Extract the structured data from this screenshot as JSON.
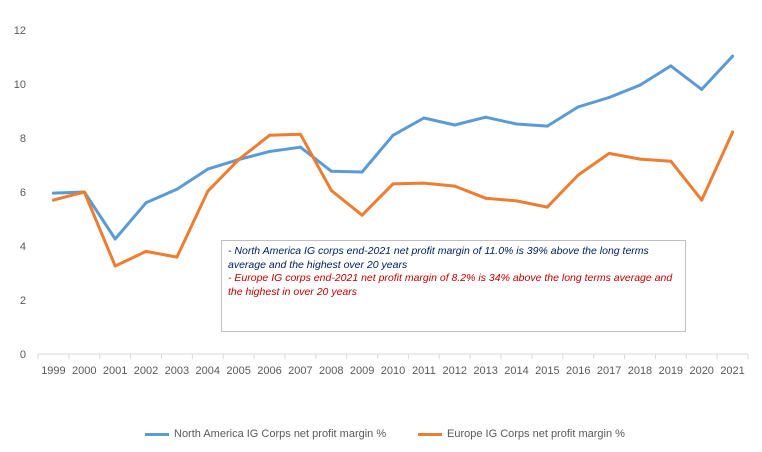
{
  "chart_data": {
    "type": "line",
    "categories": [
      "1999",
      "2000",
      "2001",
      "2002",
      "2003",
      "2004",
      "2005",
      "2006",
      "2007",
      "2008",
      "2009",
      "2010",
      "2011",
      "2012",
      "2013",
      "2014",
      "2015",
      "2016",
      "2017",
      "2018",
      "2019",
      "2020",
      "2021"
    ],
    "series": [
      {
        "name": "North America IG Corps net profit margin %",
        "color": "#5b9bd5",
        "values": [
          5.96,
          6.0,
          4.26,
          5.6,
          6.1,
          6.85,
          7.2,
          7.5,
          7.66,
          6.77,
          6.74,
          8.1,
          8.74,
          8.48,
          8.77,
          8.52,
          8.44,
          9.15,
          9.5,
          9.96,
          10.67,
          9.8,
          11.03
        ]
      },
      {
        "name": "Europe IG Corps net profit margin %",
        "color": "#ed7d31",
        "values": [
          5.7,
          6.0,
          3.26,
          3.8,
          3.59,
          6.03,
          7.2,
          8.1,
          8.14,
          6.06,
          5.14,
          6.3,
          6.33,
          6.22,
          5.77,
          5.67,
          5.44,
          6.63,
          7.43,
          7.22,
          7.14,
          5.7,
          8.22
        ]
      }
    ],
    "yticks": [
      "0",
      "2",
      "4",
      "6",
      "8",
      "10",
      "12"
    ],
    "ylim": [
      0,
      12
    ],
    "grid": false,
    "legend": "bottom",
    "annotation": {
      "line1": "- North America IG corps end-2021 net profit margin of 11.0% is 39% above the long terms average and the highest over 20 years",
      "line2": " - Europe IG corps end-2021 net profit margin of 8.2% is 34% above the long terms average and the highest in over 20 years",
      "color1": "#002060",
      "color2": "#c00000"
    }
  }
}
